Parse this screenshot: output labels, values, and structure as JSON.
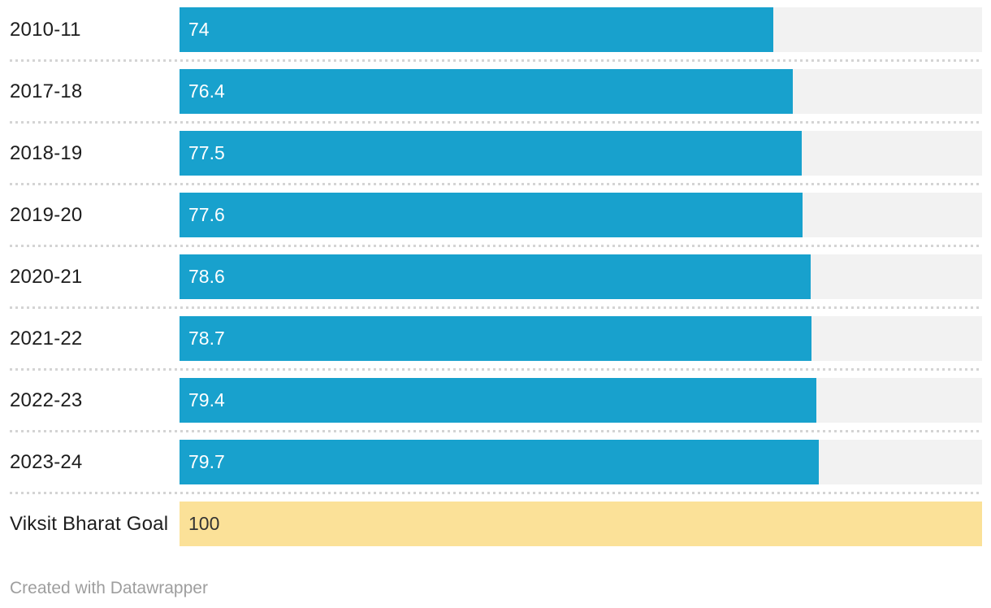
{
  "chart_data": {
    "type": "bar",
    "orientation": "horizontal",
    "title": "",
    "xlabel": "",
    "ylabel": "",
    "xlim": [
      0,
      100
    ],
    "grid": false,
    "legend": "none",
    "categories": [
      "2010-11",
      "2017-18",
      "2018-19",
      "2019-20",
      "2020-21",
      "2021-22",
      "2022-23",
      "2023-24",
      "Viksit Bharat Goal"
    ],
    "values": [
      74,
      76.4,
      77.5,
      77.6,
      78.6,
      78.7,
      79.4,
      79.7,
      100
    ],
    "highlight_category": "Viksit Bharat Goal",
    "bar_color_default": "#18a1cd",
    "bar_color_highlight": "#fbe198",
    "track_color": "#f2f2f2"
  },
  "rows": [
    {
      "label": "2010-11",
      "value": 74,
      "value_display": "74",
      "color": "blue"
    },
    {
      "label": "2017-18",
      "value": 76.4,
      "value_display": "76.4",
      "color": "blue"
    },
    {
      "label": "2018-19",
      "value": 77.5,
      "value_display": "77.5",
      "color": "blue"
    },
    {
      "label": "2019-20",
      "value": 77.6,
      "value_display": "77.6",
      "color": "blue"
    },
    {
      "label": "2020-21",
      "value": 78.6,
      "value_display": "78.6",
      "color": "blue"
    },
    {
      "label": "2021-22",
      "value": 78.7,
      "value_display": "78.7",
      "color": "blue"
    },
    {
      "label": "2022-23",
      "value": 79.4,
      "value_display": "79.4",
      "color": "blue"
    },
    {
      "label": "2023-24",
      "value": 79.7,
      "value_display": "79.7",
      "color": "blue"
    },
    {
      "label": "Viksit Bharat Goal",
      "value": 100,
      "value_display": "100",
      "color": "yellow"
    }
  ],
  "footer": {
    "attribution": "Created with Datawrapper"
  },
  "colors": {
    "bar_blue": "#18a1cd",
    "bar_yellow": "#fbe198",
    "track_gray": "#f2f2f2",
    "separator_gray": "#d4d4d4",
    "label_text": "#1d1d1d",
    "value_text_on_blue": "#ffffff",
    "value_text_on_yellow": "#333333",
    "footer_text": "#9e9e9e"
  }
}
